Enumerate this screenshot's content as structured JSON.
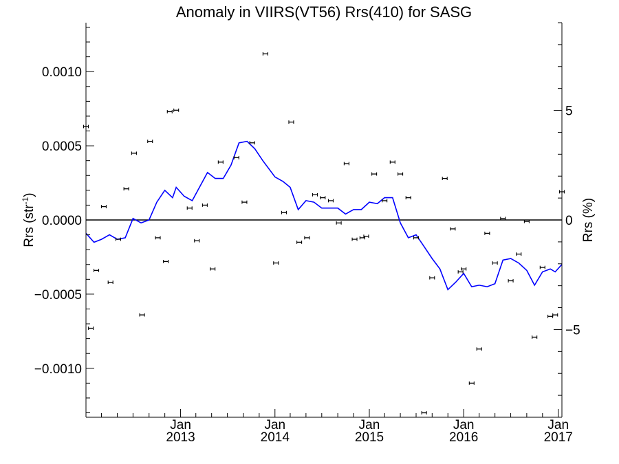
{
  "chart_data": {
    "type": "scatter",
    "title": "Anomaly in VIIRS(VT56) Rrs(410) for SASG",
    "ylabel_left": "Rrs (str",
    "ylabel_left_superscript": "-1",
    "ylabel_left_close": ")",
    "ylabel_right": "Rrs (%)",
    "xlim": [
      "2012-01-01",
      "2017-01-15"
    ],
    "ylim": [
      -0.00133,
      0.00133
    ],
    "ylim_right_percent": [
      -9.0,
      9.0
    ],
    "grid": false,
    "zero_line": true,
    "x_ticks": [
      {
        "month": "Jan",
        "year": "2013",
        "date": "2013-01-01"
      },
      {
        "month": "Jan",
        "year": "2014",
        "date": "2014-01-01"
      },
      {
        "month": "Jan",
        "year": "2015",
        "date": "2015-01-01"
      },
      {
        "month": "Jan",
        "year": "2016",
        "date": "2016-01-01"
      },
      {
        "month": "Jan",
        "year": "2017",
        "date": "2017-01-01"
      }
    ],
    "y_ticks_left": [
      {
        "value": 0.001,
        "label": "0.0010"
      },
      {
        "value": 0.0005,
        "label": "0.0005"
      },
      {
        "value": 0.0,
        "label": "0.0000"
      },
      {
        "value": -0.0005,
        "label": "−0.0005"
      },
      {
        "value": -0.001,
        "label": "−0.0010"
      }
    ],
    "y_ticks_right": [
      {
        "value": 5,
        "label": "5"
      },
      {
        "value": 0,
        "label": "0"
      },
      {
        "value": -5,
        "label": "−5"
      }
    ],
    "series": [
      {
        "kind": "points_with_errorbars",
        "color": "#000000",
        "points": [
          {
            "x": "2012-01-01",
            "y": 0.00063
          },
          {
            "x": "2012-01-20",
            "y": -0.00073
          },
          {
            "x": "2012-02-10",
            "y": -0.00034
          },
          {
            "x": "2012-03-10",
            "y": 9e-05
          },
          {
            "x": "2012-04-05",
            "y": -0.00042
          },
          {
            "x": "2012-05-05",
            "y": -0.00013
          },
          {
            "x": "2012-06-05",
            "y": 0.00021
          },
          {
            "x": "2012-07-05",
            "y": 0.00045
          },
          {
            "x": "2012-08-05",
            "y": -0.00064
          },
          {
            "x": "2012-09-05",
            "y": 0.00053
          },
          {
            "x": "2012-10-05",
            "y": -0.00012
          },
          {
            "x": "2012-11-05",
            "y": -0.00028
          },
          {
            "x": "2012-11-20",
            "y": 0.00073
          },
          {
            "x": "2012-12-15",
            "y": 0.00074
          },
          {
            "x": "2013-02-05",
            "y": 8e-05
          },
          {
            "x": "2013-03-05",
            "y": -0.00014
          },
          {
            "x": "2013-04-05",
            "y": 0.0001
          },
          {
            "x": "2013-05-05",
            "y": -0.00033
          },
          {
            "x": "2013-06-05",
            "y": 0.00039
          },
          {
            "x": "2013-08-05",
            "y": 0.00042
          },
          {
            "x": "2013-09-05",
            "y": 0.00012
          },
          {
            "x": "2013-10-05",
            "y": 0.00052
          },
          {
            "x": "2013-11-25",
            "y": 0.00112
          },
          {
            "x": "2014-01-05",
            "y": -0.00029
          },
          {
            "x": "2014-02-05",
            "y": 5e-05
          },
          {
            "x": "2014-03-05",
            "y": 0.00066
          },
          {
            "x": "2014-04-05",
            "y": -0.00015
          },
          {
            "x": "2014-05-05",
            "y": -0.00012
          },
          {
            "x": "2014-06-05",
            "y": 0.00017
          },
          {
            "x": "2014-07-05",
            "y": 0.00015
          },
          {
            "x": "2014-08-05",
            "y": 0.00013
          },
          {
            "x": "2014-09-05",
            "y": -2e-05
          },
          {
            "x": "2014-10-05",
            "y": 0.00038
          },
          {
            "x": "2014-11-05",
            "y": -0.00013
          },
          {
            "x": "2014-12-05",
            "y": -0.00012
          },
          {
            "x": "2014-12-20",
            "y": -0.00011
          },
          {
            "x": "2015-01-20",
            "y": 0.00031
          },
          {
            "x": "2015-03-01",
            "y": 0.00013
          },
          {
            "x": "2015-04-01",
            "y": 0.00039
          },
          {
            "x": "2015-05-01",
            "y": 0.00031
          },
          {
            "x": "2015-06-01",
            "y": 0.00015
          },
          {
            "x": "2015-07-01",
            "y": -0.00012
          },
          {
            "x": "2015-08-01",
            "y": -0.0013
          },
          {
            "x": "2015-09-01",
            "y": -0.00039
          },
          {
            "x": "2015-10-20",
            "y": 0.00028
          },
          {
            "x": "2015-11-20",
            "y": -6e-05
          },
          {
            "x": "2015-12-20",
            "y": -0.00035
          },
          {
            "x": "2016-01-01",
            "y": -0.00033
          },
          {
            "x": "2016-02-01",
            "y": -0.0011
          },
          {
            "x": "2016-03-01",
            "y": -0.00087
          },
          {
            "x": "2016-04-01",
            "y": -9e-05
          },
          {
            "x": "2016-05-01",
            "y": -0.00029
          },
          {
            "x": "2016-06-01",
            "y": 1e-05
          },
          {
            "x": "2016-07-01",
            "y": -0.00041
          },
          {
            "x": "2016-08-01",
            "y": -0.00023
          },
          {
            "x": "2016-09-01",
            "y": -1e-05
          },
          {
            "x": "2016-10-01",
            "y": -0.00079
          },
          {
            "x": "2016-11-01",
            "y": -0.00032
          },
          {
            "x": "2016-12-01",
            "y": -0.00065
          },
          {
            "x": "2016-12-20",
            "y": -0.00064
          },
          {
            "x": "2017-01-15",
            "y": 0.00019
          }
        ]
      },
      {
        "kind": "line",
        "color": "#0000ff",
        "points": [
          {
            "x": "2012-01-01",
            "y": -9e-05
          },
          {
            "x": "2012-02-01",
            "y": -0.00015
          },
          {
            "x": "2012-03-01",
            "y": -0.00013
          },
          {
            "x": "2012-04-01",
            "y": -0.0001
          },
          {
            "x": "2012-05-01",
            "y": -0.00013
          },
          {
            "x": "2012-06-01",
            "y": -0.00012
          },
          {
            "x": "2012-07-01",
            "y": 1e-05
          },
          {
            "x": "2012-08-01",
            "y": -2e-05
          },
          {
            "x": "2012-09-01",
            "y": 0.0
          },
          {
            "x": "2012-10-01",
            "y": 0.00012
          },
          {
            "x": "2012-11-01",
            "y": 0.0002
          },
          {
            "x": "2012-12-01",
            "y": 0.00015
          },
          {
            "x": "2012-12-15",
            "y": 0.00022
          },
          {
            "x": "2013-01-15",
            "y": 0.00016
          },
          {
            "x": "2013-02-15",
            "y": 0.00013
          },
          {
            "x": "2013-03-15",
            "y": 0.00022
          },
          {
            "x": "2013-04-15",
            "y": 0.00032
          },
          {
            "x": "2013-05-15",
            "y": 0.00028
          },
          {
            "x": "2013-06-15",
            "y": 0.00028
          },
          {
            "x": "2013-07-15",
            "y": 0.00037
          },
          {
            "x": "2013-08-15",
            "y": 0.00052
          },
          {
            "x": "2013-09-15",
            "y": 0.00053
          },
          {
            "x": "2013-10-15",
            "y": 0.00048
          },
          {
            "x": "2013-11-15",
            "y": 0.0004
          },
          {
            "x": "2014-01-01",
            "y": 0.00029
          },
          {
            "x": "2014-02-01",
            "y": 0.00026
          },
          {
            "x": "2014-03-01",
            "y": 0.00022
          },
          {
            "x": "2014-04-01",
            "y": 7e-05
          },
          {
            "x": "2014-05-01",
            "y": 0.00013
          },
          {
            "x": "2014-06-01",
            "y": 0.00012
          },
          {
            "x": "2014-07-01",
            "y": 8e-05
          },
          {
            "x": "2014-08-01",
            "y": 8e-05
          },
          {
            "x": "2014-09-01",
            "y": 8e-05
          },
          {
            "x": "2014-10-01",
            "y": 4e-05
          },
          {
            "x": "2014-11-01",
            "y": 7e-05
          },
          {
            "x": "2014-12-01",
            "y": 7e-05
          },
          {
            "x": "2015-01-01",
            "y": 0.00012
          },
          {
            "x": "2015-02-01",
            "y": 0.00011
          },
          {
            "x": "2015-03-01",
            "y": 0.00015
          },
          {
            "x": "2015-04-01",
            "y": 0.00015
          },
          {
            "x": "2015-05-01",
            "y": -2e-05
          },
          {
            "x": "2015-06-01",
            "y": -0.00012
          },
          {
            "x": "2015-07-01",
            "y": -0.0001
          },
          {
            "x": "2015-08-01",
            "y": -0.00018
          },
          {
            "x": "2015-09-01",
            "y": -0.00026
          },
          {
            "x": "2015-10-01",
            "y": -0.00033
          },
          {
            "x": "2015-11-01",
            "y": -0.00047
          },
          {
            "x": "2015-12-01",
            "y": -0.00042
          },
          {
            "x": "2016-01-01",
            "y": -0.00036
          },
          {
            "x": "2016-02-01",
            "y": -0.00045
          },
          {
            "x": "2016-03-01",
            "y": -0.00044
          },
          {
            "x": "2016-04-01",
            "y": -0.00045
          },
          {
            "x": "2016-05-01",
            "y": -0.00043
          },
          {
            "x": "2016-06-01",
            "y": -0.00027
          },
          {
            "x": "2016-07-01",
            "y": -0.00026
          },
          {
            "x": "2016-08-01",
            "y": -0.00029
          },
          {
            "x": "2016-09-01",
            "y": -0.00034
          },
          {
            "x": "2016-10-01",
            "y": -0.00044
          },
          {
            "x": "2016-11-01",
            "y": -0.00035
          },
          {
            "x": "2016-12-01",
            "y": -0.00033
          },
          {
            "x": "2016-12-20",
            "y": -0.00035
          },
          {
            "x": "2017-01-15",
            "y": -0.0003
          }
        ]
      }
    ]
  }
}
